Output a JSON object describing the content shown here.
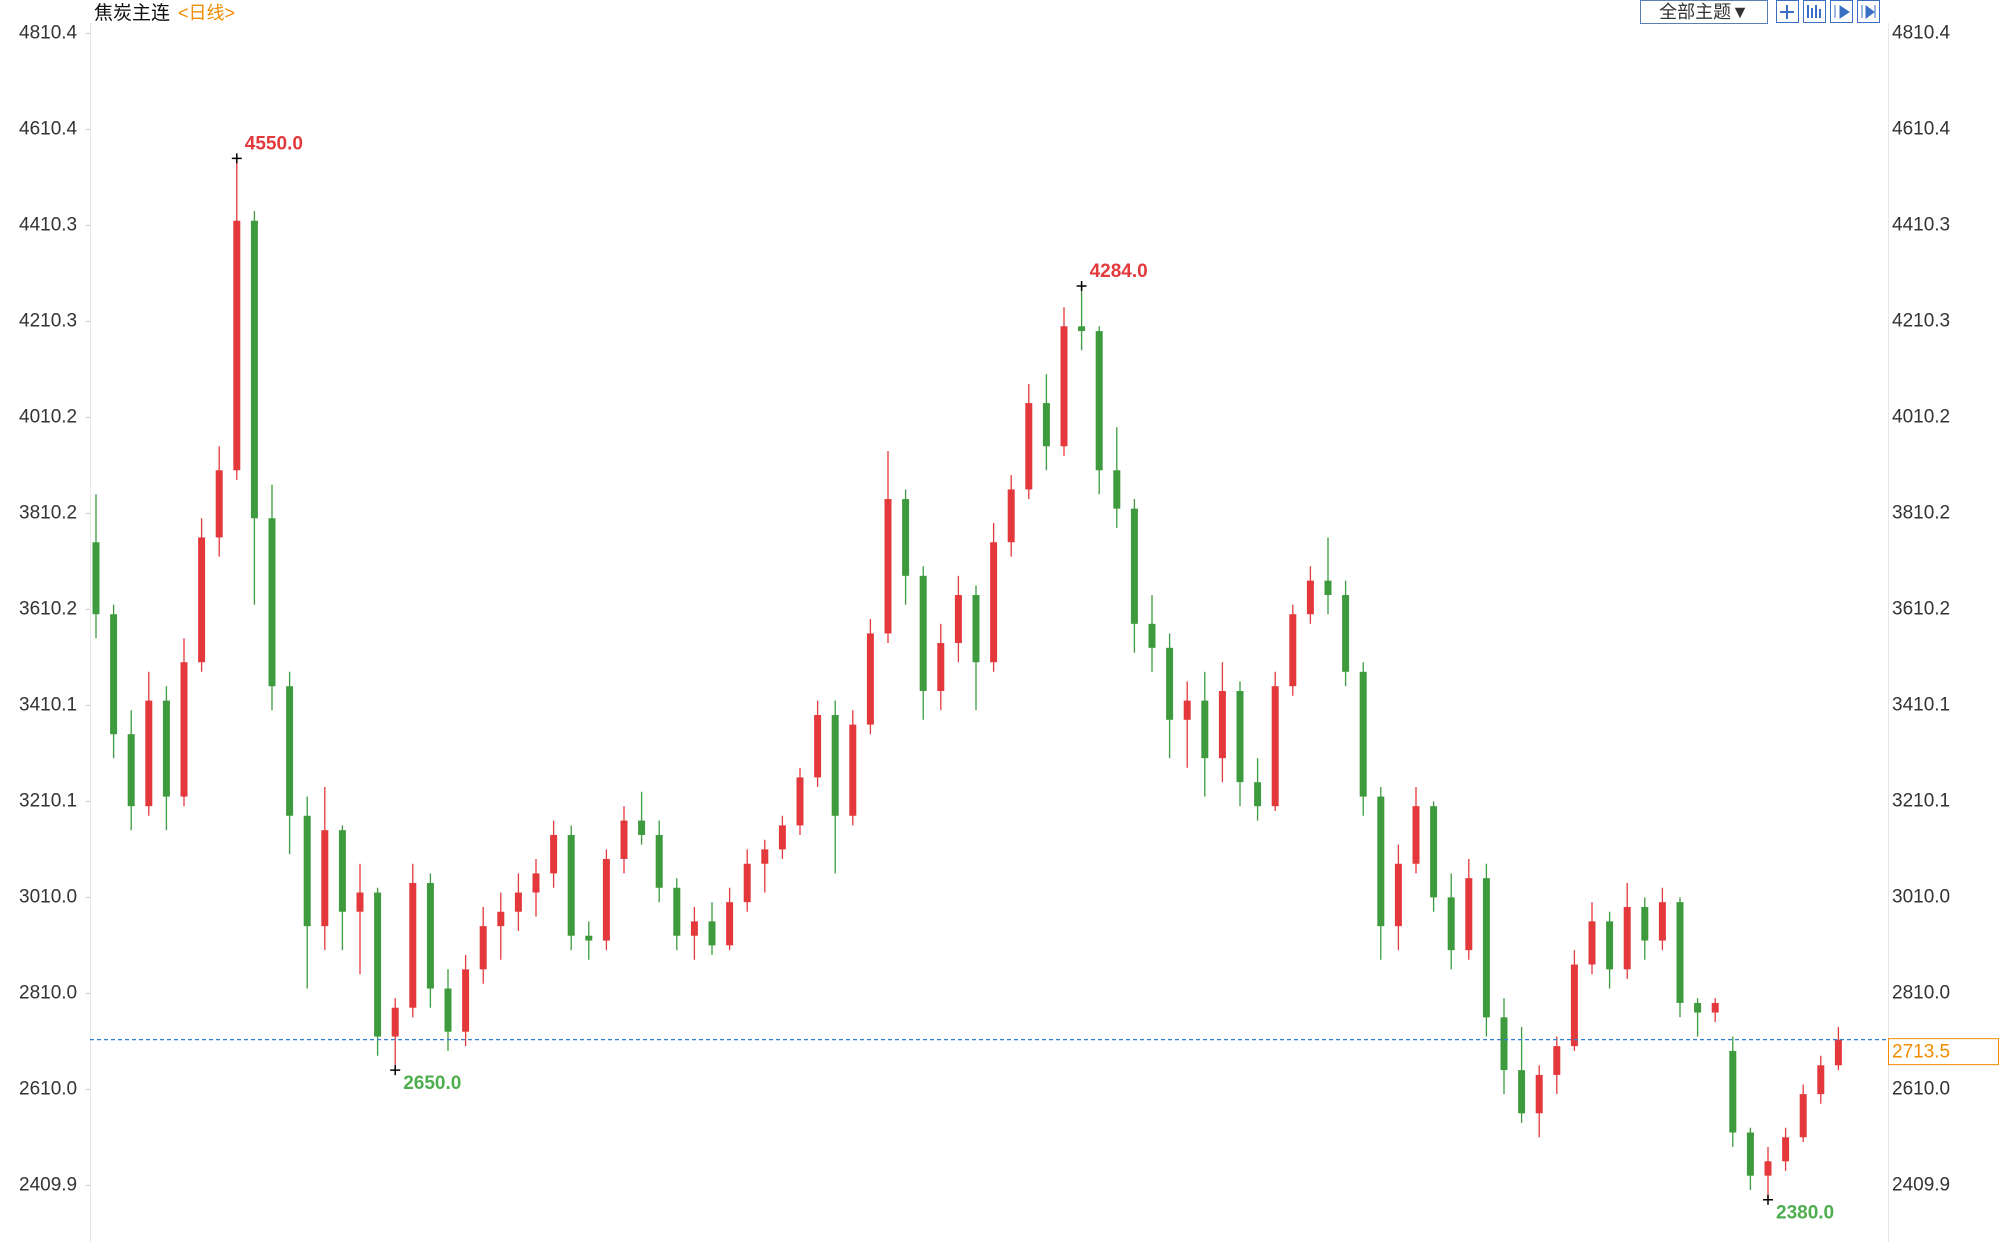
{
  "header": {
    "title": "焦炭主连",
    "period": "<日线>",
    "theme_button": "全部主题▼"
  },
  "chart_data": {
    "type": "candlestick",
    "open": [
      3750,
      3600,
      3350,
      3200,
      3420,
      3220,
      3500,
      3760,
      3900,
      4420,
      3800,
      3450,
      3180,
      2950,
      3150,
      2980,
      3020,
      2720,
      2780,
      3040,
      2820,
      2730,
      2860,
      2950,
      2980,
      3020,
      3060,
      3140,
      2930,
      2920,
      3090,
      3170,
      3140,
      3030,
      2930,
      2960,
      2910,
      3000,
      3080,
      3110,
      3160,
      3260,
      3390,
      3180,
      3370,
      3560,
      3840,
      3680,
      3440,
      3540,
      3640,
      3500,
      3750,
      3860,
      4040,
      3950,
      4200,
      4190,
      3900,
      3820,
      3580,
      3530,
      3380,
      3420,
      3300,
      3440,
      3250,
      3200,
      3450,
      3600,
      3670,
      3640,
      3480,
      3220,
      2950,
      3080,
      3200,
      3010,
      2900,
      3050,
      2760,
      2650,
      2560,
      2640,
      2700,
      2870,
      2960,
      2860,
      2990,
      2920,
      3000,
      2790,
      2770,
      2690,
      2520,
      2430,
      2460,
      2510,
      2600,
      2660
    ],
    "high": [
      3850,
      3620,
      3400,
      3480,
      3450,
      3550,
      3800,
      3950,
      4550,
      4440,
      3870,
      3480,
      3220,
      3240,
      3160,
      3080,
      3030,
      2800,
      3080,
      3060,
      2860,
      2890,
      2990,
      3020,
      3060,
      3090,
      3170,
      3160,
      2960,
      3110,
      3200,
      3230,
      3170,
      3050,
      2990,
      3000,
      3030,
      3110,
      3130,
      3180,
      3280,
      3420,
      3420,
      3400,
      3590,
      3940,
      3860,
      3700,
      3580,
      3680,
      3660,
      3790,
      3890,
      4080,
      4100,
      4240,
      4284,
      4200,
      3990,
      3840,
      3640,
      3560,
      3460,
      3480,
      3500,
      3460,
      3300,
      3480,
      3620,
      3700,
      3760,
      3670,
      3500,
      3240,
      3120,
      3240,
      3210,
      3060,
      3090,
      3080,
      2800,
      2740,
      2660,
      2720,
      2900,
      3000,
      2980,
      3040,
      3010,
      3030,
      3010,
      2800,
      2800,
      2720,
      2530,
      2490,
      2530,
      2620,
      2680,
      2740
    ],
    "low": [
      3550,
      3300,
      3150,
      3180,
      3150,
      3200,
      3480,
      3720,
      3880,
      3620,
      3400,
      3100,
      2820,
      2900,
      2900,
      2850,
      2680,
      2650,
      2760,
      2780,
      2690,
      2700,
      2830,
      2880,
      2940,
      2970,
      3030,
      2900,
      2880,
      2900,
      3060,
      3120,
      3000,
      2900,
      2880,
      2890,
      2900,
      2980,
      3020,
      3090,
      3140,
      3240,
      3060,
      3160,
      3350,
      3540,
      3620,
      3380,
      3400,
      3500,
      3400,
      3480,
      3720,
      3840,
      3900,
      3930,
      4150,
      3850,
      3780,
      3520,
      3480,
      3300,
      3280,
      3220,
      3250,
      3200,
      3170,
      3190,
      3430,
      3580,
      3600,
      3450,
      3180,
      2880,
      2900,
      3060,
      2980,
      2860,
      2880,
      2720,
      2600,
      2540,
      2510,
      2600,
      2690,
      2850,
      2820,
      2840,
      2880,
      2900,
      2760,
      2720,
      2750,
      2490,
      2400,
      2380,
      2440,
      2500,
      2580,
      2650
    ],
    "close": [
      3600,
      3350,
      3200,
      3420,
      3220,
      3500,
      3760,
      3900,
      4420,
      3800,
      3450,
      3180,
      2950,
      3150,
      2980,
      3020,
      2720,
      2780,
      3040,
      2820,
      2730,
      2860,
      2950,
      2980,
      3020,
      3060,
      3140,
      2930,
      2920,
      3090,
      3170,
      3140,
      3030,
      2930,
      2960,
      2910,
      3000,
      3080,
      3110,
      3160,
      3260,
      3390,
      3180,
      3370,
      3560,
      3840,
      3680,
      3440,
      3540,
      3640,
      3500,
      3750,
      3860,
      4040,
      3950,
      4200,
      4190,
      3900,
      3820,
      3580,
      3530,
      3380,
      3420,
      3300,
      3440,
      3250,
      3200,
      3450,
      3600,
      3670,
      3640,
      3480,
      3220,
      2950,
      3080,
      3200,
      3010,
      2900,
      3050,
      2760,
      2650,
      2560,
      2640,
      2700,
      2870,
      2960,
      2860,
      2990,
      2920,
      3000,
      2790,
      2770,
      2790,
      2520,
      2430,
      2460,
      2510,
      2600,
      2660,
      2713.5
    ],
    "up_color": "#e4393c",
    "down_color": "#3d9b3d",
    "ylim": [
      2296,
      4832
    ],
    "yticks": [
      2409.9,
      {
        "value": 2610,
        "label": "2610.0"
      },
      {
        "value": 2810,
        "label": "2810.0"
      },
      {
        "value": 3010,
        "label": "3010.0"
      },
      3210.1,
      3410.1,
      3610.2,
      3810.2,
      4010.2,
      4210.3,
      4410.3,
      4610.4,
      4810.4
    ],
    "grid": false,
    "high_marks": [
      {
        "value": 4550,
        "label": "4550.0"
      },
      {
        "value": 4284,
        "label": "4284.0"
      }
    ],
    "low_marks": [
      {
        "value": 2650,
        "label": "2650.0"
      },
      {
        "value": 2380,
        "label": "2380.0"
      }
    ],
    "last_price": {
      "value": 2713.5,
      "label": "2713.5"
    }
  }
}
